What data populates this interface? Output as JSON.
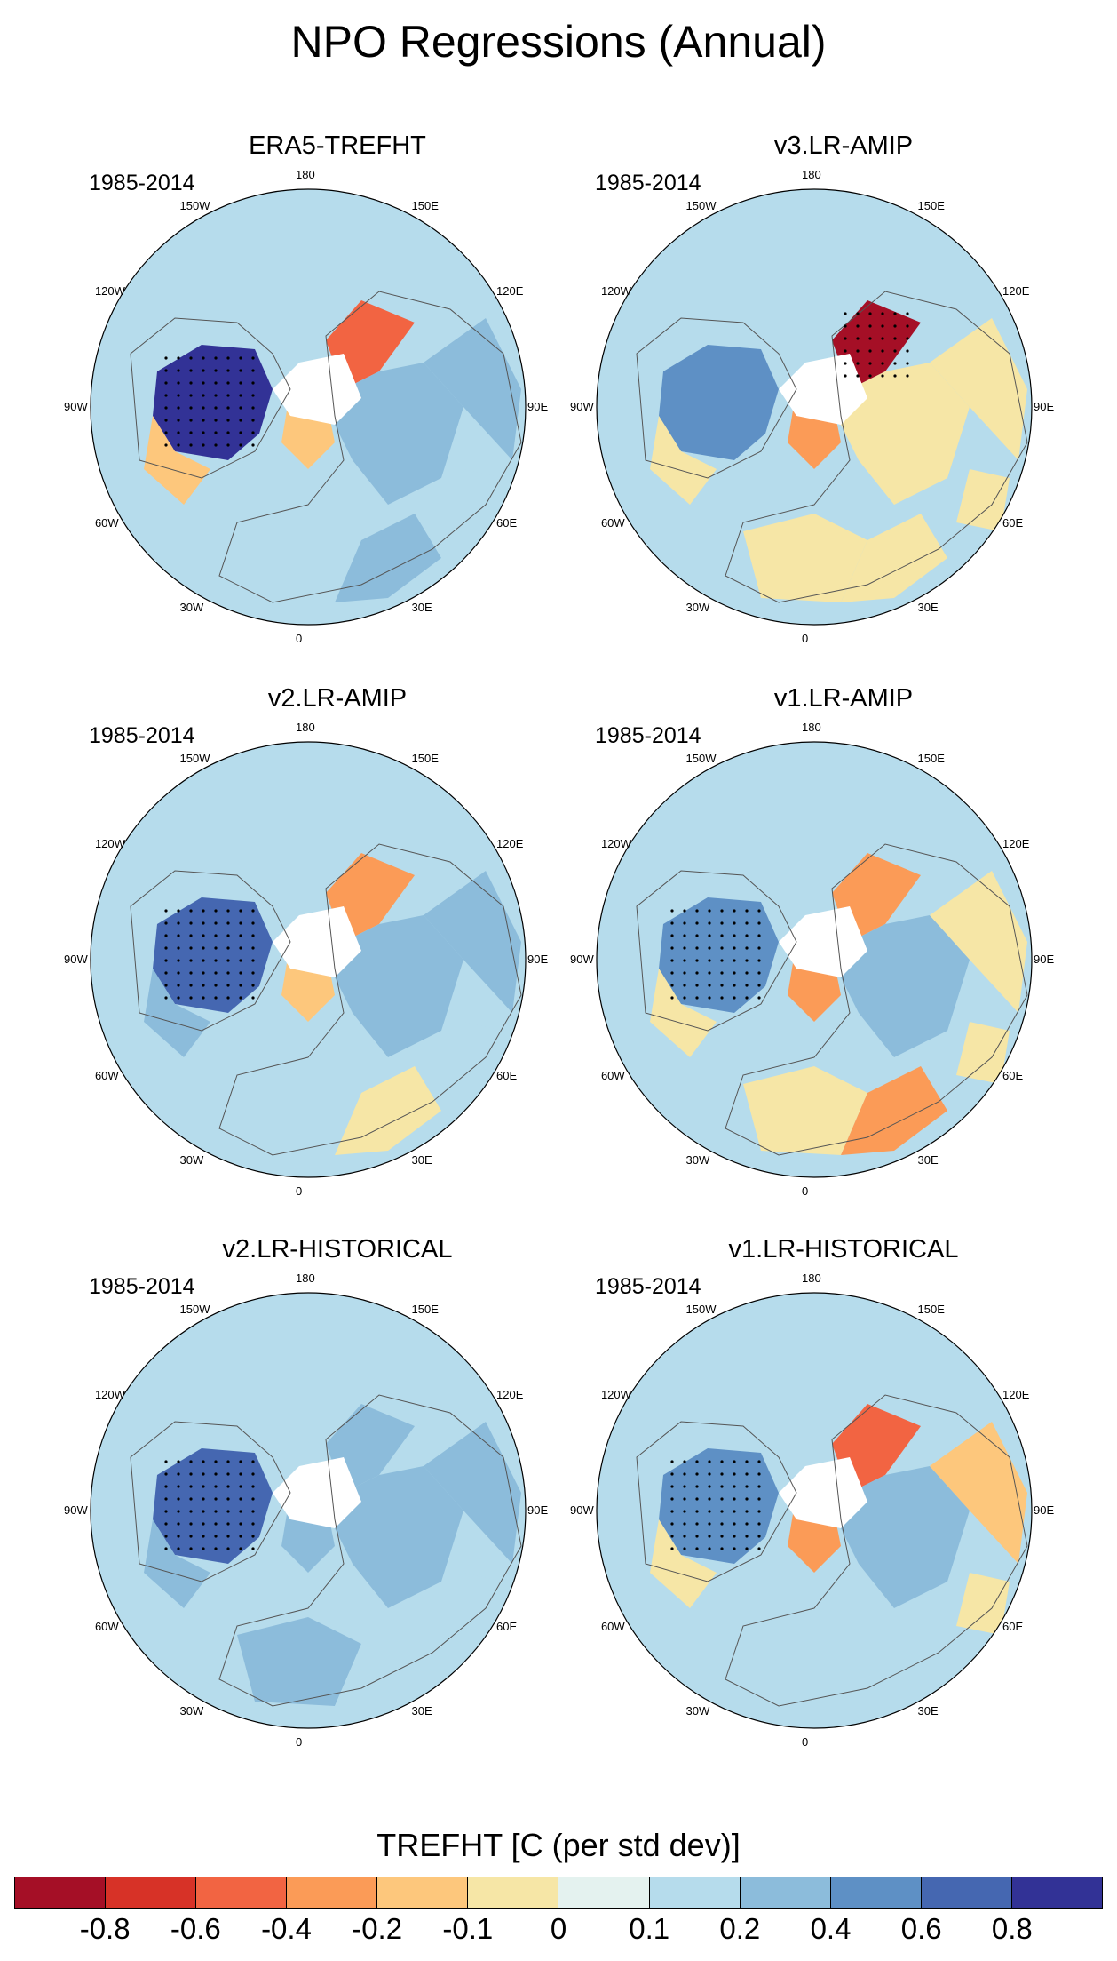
{
  "figure": {
    "title": "NPO Regressions (Annual)"
  },
  "panels": [
    {
      "title": "ERA5-TREFHT",
      "period": "1985-2014",
      "lon_labels": [
        "180",
        "150E",
        "120E",
        "90E",
        "60E",
        "30E",
        "0",
        "30W",
        "60W",
        "90W",
        "120W",
        "150W"
      ],
      "pattern": {
        "na": 0.8,
        "na_ne": -0.2,
        "sib": -0.5,
        "eura": 0.2,
        "asia": 0.3,
        "ocean": 0.1,
        "africa": 0.1,
        "me": 0.2,
        "greenland": -0.2,
        "india": 0.1
      }
    },
    {
      "title": "v3.LR-AMIP",
      "period": "1985-2014",
      "lon_labels": [
        "180",
        "150E",
        "120E",
        "90E",
        "60E",
        "30E",
        "0",
        "30W",
        "60W",
        "90W",
        "120W",
        "150W"
      ],
      "pattern": {
        "na": 0.55,
        "na_ne": -0.1,
        "sib": -0.85,
        "eura": -0.1,
        "asia": -0.1,
        "ocean": 0.1,
        "africa": -0.1,
        "me": -0.1,
        "greenland": -0.4,
        "india": -0.1
      }
    },
    {
      "title": "v2.LR-AMIP",
      "period": "1985-2014",
      "lon_labels": [
        "180",
        "150E",
        "120E",
        "90E",
        "60E",
        "30E",
        "0",
        "30W",
        "60W",
        "90W",
        "120W",
        "150W"
      ],
      "pattern": {
        "na": 0.7,
        "na_ne": 0.2,
        "sib": -0.3,
        "eura": 0.3,
        "asia": 0.35,
        "ocean": 0.15,
        "africa": 0.15,
        "me": -0.1,
        "greenland": -0.2,
        "india": 0.1
      }
    },
    {
      "title": "v1.LR-AMIP",
      "period": "1985-2014",
      "lon_labels": [
        "180",
        "150E",
        "120E",
        "90E",
        "60E",
        "30E",
        "0",
        "30W",
        "60W",
        "90W",
        "120W",
        "150W"
      ],
      "pattern": {
        "na": 0.4,
        "na_ne": -0.1,
        "sib": -0.4,
        "eura": 0.3,
        "asia": -0.1,
        "ocean": 0.1,
        "africa": -0.1,
        "me": -0.3,
        "greenland": -0.25,
        "india": -0.1
      }
    },
    {
      "title": "v2.LR-HISTORICAL",
      "period": "1985-2014",
      "lon_labels": [
        "180",
        "150E",
        "120E",
        "90E",
        "60E",
        "30E",
        "0",
        "30W",
        "60W",
        "90W",
        "120W",
        "150W"
      ],
      "pattern": {
        "na": 0.6,
        "na_ne": 0.2,
        "sib": 0.2,
        "eura": 0.3,
        "asia": 0.35,
        "ocean": 0.1,
        "africa": 0.3,
        "me": 0.1,
        "greenland": 0.3,
        "india": 0.1
      }
    },
    {
      "title": "v1.LR-HISTORICAL",
      "period": "1985-2014",
      "lon_labels": [
        "180",
        "150E",
        "120E",
        "90E",
        "60E",
        "30E",
        "0",
        "30W",
        "60W",
        "90W",
        "120W",
        "150W"
      ],
      "pattern": {
        "na": 0.5,
        "na_ne": -0.1,
        "sib": -0.45,
        "eura": 0.25,
        "asia": -0.15,
        "ocean": 0.1,
        "africa": 0.1,
        "me": 0.1,
        "greenland": -0.3,
        "india": -0.1
      }
    }
  ],
  "colorbar": {
    "title": "TREFHT [C (per std dev)]",
    "levels": [
      "-0.8",
      "-0.6",
      "-0.4",
      "-0.2",
      "-0.1",
      "0",
      "0.1",
      "0.2",
      "0.4",
      "0.6",
      "0.8"
    ],
    "colors": [
      "#a50f26",
      "#d73227",
      "#f26442",
      "#fb9b57",
      "#fdc77c",
      "#f6e6a6",
      "#e4f2ef",
      "#b6dcec",
      "#8cbcdb",
      "#5e90c5",
      "#4567b1",
      "#323296"
    ]
  }
}
